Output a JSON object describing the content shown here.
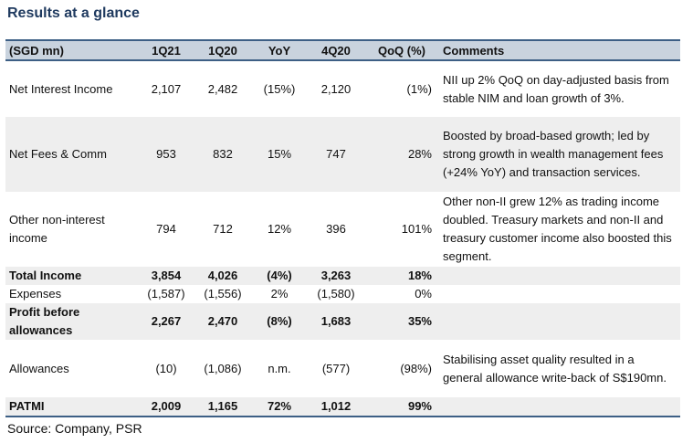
{
  "title": "Results at a glance",
  "header": {
    "label": "(SGD mn)",
    "q1_21": "1Q21",
    "q1_20": "1Q20",
    "yoy": "YoY",
    "q4_20": "4Q20",
    "qoq": "QoQ (%)",
    "comments": "Comments"
  },
  "rows": [
    {
      "label": "Net Interest Income",
      "q1_21": "2,107",
      "q1_20": "2,482",
      "yoy": "(15%)",
      "q4_20": "2,120",
      "qoq": "(1%)",
      "comment": "NII up 2% QoQ on day-adjusted basis from stable NIM and loan growth of 3%."
    },
    {
      "label": "Net Fees & Comm",
      "q1_21": "953",
      "q1_20": "832",
      "yoy": "15%",
      "q4_20": "747",
      "qoq": "28%",
      "comment": "Boosted by broad-based growth; led by strong growth in wealth management fees (+24% YoY) and transaction services."
    },
    {
      "label": "Other non-interest income",
      "q1_21": "794",
      "q1_20": "712",
      "yoy": "12%",
      "q4_20": "396",
      "qoq": "101%",
      "comment": "Other non-II grew 12% as trading income doubled. Treasury markets and non-II and treasury customer income also boosted this segment."
    },
    {
      "label": "Total Income",
      "q1_21": "3,854",
      "q1_20": "4,026",
      "yoy": "(4%)",
      "q4_20": "3,263",
      "qoq": "18%",
      "comment": ""
    },
    {
      "label": "Expenses",
      "q1_21": "(1,587)",
      "q1_20": "(1,556)",
      "yoy": "2%",
      "q4_20": "(1,580)",
      "qoq": "0%",
      "comment": ""
    },
    {
      "label": "Profit before allowances",
      "q1_21": "2,267",
      "q1_20": "2,470",
      "yoy": "(8%)",
      "q4_20": "1,683",
      "qoq": "35%",
      "comment": ""
    },
    {
      "label": "Allowances",
      "q1_21": "(10)",
      "q1_20": "(1,086)",
      "yoy": "n.m.",
      "q4_20": "(577)",
      "qoq": "(98%)",
      "comment": "Stabilising asset quality resulted in a general allowance write-back of S$190mn."
    },
    {
      "label": "PATMI",
      "q1_21": "2,009",
      "q1_20": "1,165",
      "yoy": "72%",
      "q4_20": "1,012",
      "qoq": "99%",
      "comment": ""
    }
  ],
  "source": "Source: Company, PSR"
}
